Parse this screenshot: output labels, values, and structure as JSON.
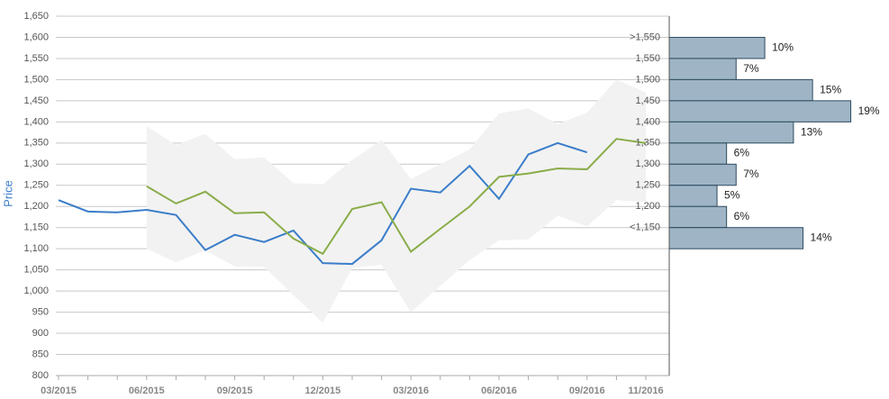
{
  "chart_data": [
    {
      "type": "line",
      "y_label": "Price",
      "axis_label_color": "#3a7dc9",
      "categories": [
        "03/2015",
        null,
        null,
        "06/2015",
        null,
        null,
        "09/2015",
        null,
        null,
        "12/2015",
        null,
        null,
        "03/2016",
        null,
        null,
        "06/2016",
        null,
        null,
        "09/2016",
        null,
        "11/2016"
      ],
      "series": [
        {
          "color": "#3a7dc9",
          "values": [
            1215,
            1188,
            1186,
            1192,
            1180,
            1097,
            1133,
            1116,
            1143,
            1066,
            1064,
            1120,
            1242,
            1233,
            1296,
            1218,
            1323,
            1350,
            1328,
            null,
            null
          ]
        },
        {
          "color": "#8aad4a",
          "values": [
            null,
            null,
            null,
            1248,
            1207,
            1235,
            1184,
            1186,
            1124,
            1088,
            1194,
            1210,
            1093,
            1147,
            1200,
            1270,
            1278,
            1290,
            1288,
            1360,
            1350
          ]
        }
      ],
      "band": {
        "color": "#f2f2f2",
        "upper": [
          null,
          null,
          null,
          1390,
          1345,
          1372,
          1312,
          1316,
          1255,
          1253,
          1310,
          1357,
          1265,
          1300,
          1335,
          1420,
          1432,
          1395,
          1422,
          1500,
          1470
        ],
        "lower": [
          null,
          null,
          null,
          1100,
          1068,
          1096,
          1058,
          1057,
          990,
          925,
          1055,
          1062,
          950,
          1012,
          1073,
          1120,
          1122,
          1178,
          1153,
          1215,
          1210
        ]
      },
      "ylim": [
        800,
        1650
      ],
      "yticks": [
        800,
        850,
        900,
        950,
        {
          "value": 1000,
          "label": "1,000"
        },
        {
          "value": 1050,
          "label": "1,050"
        },
        {
          "value": 1100,
          "label": "1,100"
        },
        {
          "value": 1150,
          "label": "1,150"
        },
        {
          "value": 1200,
          "label": "1,200"
        },
        {
          "value": 1250,
          "label": "1,250"
        },
        {
          "value": 1300,
          "label": "1,300"
        },
        {
          "value": 1350,
          "label": "1,350"
        },
        {
          "value": 1400,
          "label": "1,400"
        },
        {
          "value": 1450,
          "label": "1,450"
        },
        {
          "value": 1500,
          "label": "1,500"
        },
        {
          "value": 1550,
          "label": "1,550"
        },
        {
          "value": 1600,
          "label": "1,600"
        },
        {
          "value": 1650,
          "label": "1,650"
        }
      ],
      "grid": true
    },
    {
      "type": "barh",
      "color": "#9fb5c5",
      "edge_color": "#2d4a5f",
      "categories": [
        ">1,550",
        "1,550",
        "1,500",
        "1,450",
        "1,400",
        "1,350",
        "1,300",
        "1,250",
        "1,200",
        "<1,150"
      ],
      "bins": [
        1600,
        1550,
        1500,
        1450,
        1400,
        1350,
        1300,
        1250,
        1200,
        1150,
        1100
      ],
      "values": [
        10,
        7,
        15,
        19,
        13,
        6,
        7,
        5,
        6,
        14
      ],
      "value_labels": [
        "10%",
        "7%",
        "15%",
        "19%",
        "13%",
        "6%",
        "7%",
        "5%",
        "6%",
        "14%"
      ],
      "xlim": [
        0,
        23
      ]
    }
  ]
}
